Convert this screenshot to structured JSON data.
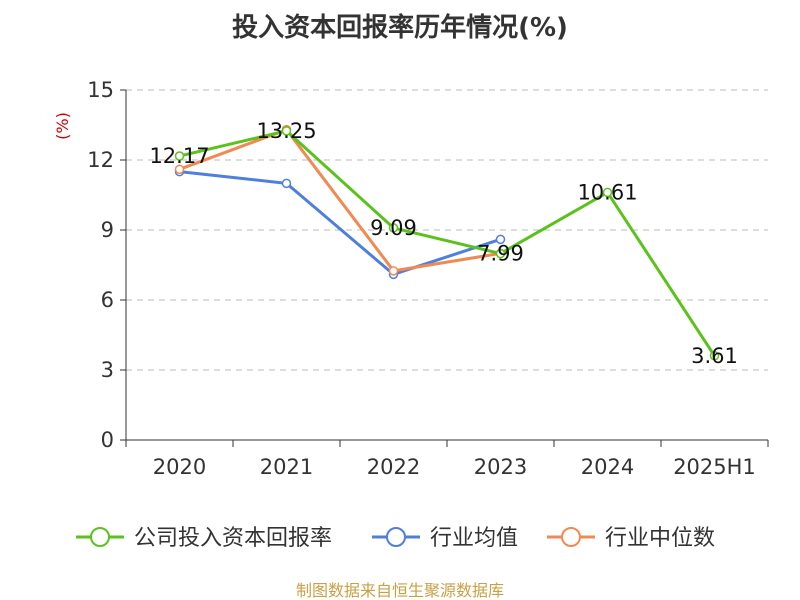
{
  "colors": {
    "company": "#5bc21c",
    "industry_avg": "#4f7fdc",
    "industry_median": "#f08a52",
    "grid": "#bbbbbb",
    "axis": "#333333",
    "unit": "#cc0000",
    "source": "#c8a046"
  },
  "chart_data": {
    "type": "line",
    "title": "投入资本回报率历年情况(%)",
    "ylabel": "(%)",
    "ylim": [
      0,
      15
    ],
    "yticks": [
      "0",
      "3",
      "6",
      "9",
      "12",
      "15"
    ],
    "categories": [
      "2020",
      "2021",
      "2022",
      "2023",
      "2024",
      "2025H1"
    ],
    "grid": true,
    "legend_position": "bottom",
    "series": [
      {
        "name": "公司投入资本回报率",
        "values": [
          12.17,
          13.25,
          9.09,
          7.99,
          10.61,
          3.61
        ],
        "labels": [
          "12.17",
          "13.25",
          "9.09",
          "7.99",
          "10.61",
          "3.61"
        ]
      },
      {
        "name": "行业均值",
        "values": [
          11.5,
          11.0,
          7.1,
          8.6,
          null,
          null
        ]
      },
      {
        "name": "行业中位数",
        "values": [
          11.6,
          13.3,
          7.25,
          8.0,
          null,
          null
        ]
      }
    ],
    "source": "制图数据来自恒生聚源数据库"
  }
}
